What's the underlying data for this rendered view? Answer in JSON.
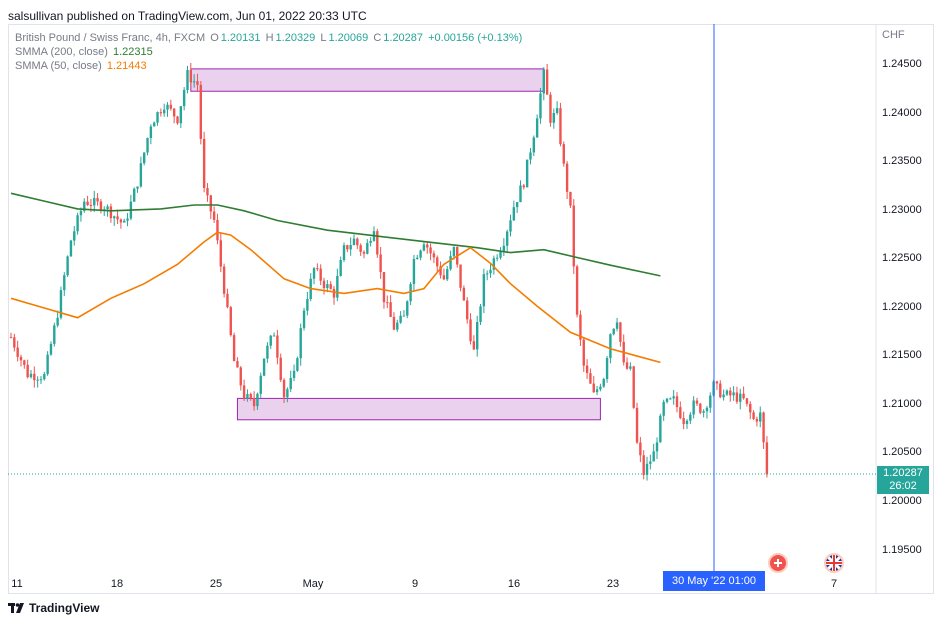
{
  "header": {
    "publisher": "salsullivan published on TradingView.com, Jun 01, 2022 20:33 UTC"
  },
  "legend": {
    "symbol": "British Pound / Swiss Franc, 4h, FXCM",
    "o_label": "O",
    "o_value": "1.20131",
    "h_label": "H",
    "h_value": "1.20329",
    "l_label": "L",
    "l_value": "1.20069",
    "c_label": "C",
    "c_value": "1.20287",
    "change": "+0.00156 (+0.13%)",
    "sma200_label": "SMMA (200, close)",
    "sma200_value": "1.22315",
    "sma50_label": "SMMA (50, close)",
    "sma50_value": "1.21443"
  },
  "price_axis": {
    "currency": "CHF",
    "ticks": [
      "1.24500",
      "1.24000",
      "1.23500",
      "1.23000",
      "1.22500",
      "1.22000",
      "1.21500",
      "1.21000",
      "1.20500",
      "1.20000",
      "1.19500"
    ]
  },
  "time_axis": {
    "ticks": [
      "11",
      "18",
      "25",
      "May",
      "9",
      "16",
      "23",
      "7"
    ]
  },
  "last_price": {
    "value": "1.20287",
    "countdown": "26:02"
  },
  "crosshair": {
    "date_label": "30 May '22   01:00"
  },
  "footer": {
    "brand": "TradingView"
  },
  "colors": {
    "up": "#26a69a",
    "down": "#ef5350",
    "sma200": "#2e7d32",
    "sma50": "#f57c00",
    "zone": "#e1bee7",
    "zone_border": "#9c27b0",
    "crosshair": "#2962ff"
  },
  "icons": {
    "event_1": "economic-event-icon",
    "event_2": "uk-flag-icon"
  },
  "chart_data": {
    "type": "candlestick",
    "symbol": "GBPCHF",
    "timeframe": "4h",
    "ylim": [
      1.191,
      1.248
    ],
    "overlays": [
      {
        "name": "SMMA (200, close)",
        "points": [
          [
            0,
            1.2318
          ],
          [
            10,
            1.231
          ],
          [
            20,
            1.2302
          ],
          [
            30,
            1.23
          ],
          [
            45,
            1.2302
          ],
          [
            55,
            1.2306
          ],
          [
            62,
            1.2306
          ],
          [
            70,
            1.23
          ],
          [
            80,
            1.229
          ],
          [
            95,
            1.228
          ],
          [
            110,
            1.2274
          ],
          [
            125,
            1.2268
          ],
          [
            140,
            1.2262
          ],
          [
            150,
            1.2257
          ],
          [
            160,
            1.226
          ],
          [
            170,
            1.2252
          ],
          [
            180,
            1.2244
          ],
          [
            195,
            1.2233
          ]
        ]
      },
      {
        "name": "SMMA (50, close)",
        "points": [
          [
            0,
            1.221
          ],
          [
            10,
            1.22
          ],
          [
            20,
            1.219
          ],
          [
            30,
            1.221
          ],
          [
            40,
            1.2225
          ],
          [
            50,
            1.2245
          ],
          [
            58,
            1.2268
          ],
          [
            62,
            1.2278
          ],
          [
            66,
            1.2275
          ],
          [
            72,
            1.226
          ],
          [
            82,
            1.223
          ],
          [
            90,
            1.222
          ],
          [
            100,
            1.2215
          ],
          [
            110,
            1.222
          ],
          [
            118,
            1.2215
          ],
          [
            124,
            1.222
          ],
          [
            130,
            1.2245
          ],
          [
            138,
            1.2262
          ],
          [
            144,
            1.2246
          ],
          [
            150,
            1.2225
          ],
          [
            158,
            1.2202
          ],
          [
            168,
            1.2175
          ],
          [
            180,
            1.2158
          ],
          [
            195,
            1.2144
          ]
        ]
      }
    ],
    "zones": [
      {
        "x0": 54,
        "x1": 160,
        "top": 1.2446,
        "bottom": 1.2423
      },
      {
        "x0": 68,
        "x1": 177,
        "top": 1.2107,
        "bottom": 1.2085
      }
    ],
    "close_path": [
      [
        0,
        1.217
      ],
      [
        5,
        1.2132
      ],
      [
        10,
        1.213
      ],
      [
        14,
        1.2195
      ],
      [
        18,
        1.227
      ],
      [
        22,
        1.231
      ],
      [
        28,
        1.2305
      ],
      [
        34,
        1.2285
      ],
      [
        38,
        1.233
      ],
      [
        42,
        1.239
      ],
      [
        46,
        1.241
      ],
      [
        50,
        1.2395
      ],
      [
        53,
        1.244
      ],
      [
        56,
        1.243
      ],
      [
        58,
        1.232
      ],
      [
        61,
        1.229
      ],
      [
        64,
        1.222
      ],
      [
        67,
        1.2145
      ],
      [
        70,
        1.211
      ],
      [
        73,
        1.21
      ],
      [
        76,
        1.215
      ],
      [
        79,
        1.2175
      ],
      [
        82,
        1.211
      ],
      [
        85,
        1.213
      ],
      [
        88,
        1.22
      ],
      [
        91,
        1.224
      ],
      [
        94,
        1.2225
      ],
      [
        97,
        1.2215
      ],
      [
        100,
        1.226
      ],
      [
        103,
        1.227
      ],
      [
        106,
        1.2255
      ],
      [
        109,
        1.2285
      ],
      [
        112,
        1.221
      ],
      [
        115,
        1.218
      ],
      [
        118,
        1.219
      ],
      [
        121,
        1.225
      ],
      [
        124,
        1.227
      ],
      [
        127,
        1.225
      ],
      [
        130,
        1.223
      ],
      [
        133,
        1.226
      ],
      [
        136,
        1.2205
      ],
      [
        139,
        1.2155
      ],
      [
        142,
        1.223
      ],
      [
        145,
        1.225
      ],
      [
        148,
        1.227
      ],
      [
        151,
        1.2305
      ],
      [
        154,
        1.233
      ],
      [
        157,
        1.238
      ],
      [
        160,
        1.244
      ],
      [
        162,
        1.2395
      ],
      [
        164,
        1.24
      ],
      [
        166,
        1.2345
      ],
      [
        168,
        1.23
      ],
      [
        170,
        1.219
      ],
      [
        172,
        1.214
      ],
      [
        175,
        1.211
      ],
      [
        178,
        1.213
      ],
      [
        180,
        1.2175
      ],
      [
        182,
        1.219
      ],
      [
        184,
        1.214
      ],
      [
        186,
        1.2135
      ],
      [
        188,
        1.206
      ],
      [
        190,
        1.203
      ],
      [
        193,
        1.205
      ],
      [
        196,
        1.21
      ],
      [
        199,
        1.2105
      ],
      [
        202,
        1.2085
      ],
      [
        205,
        1.21
      ],
      [
        208,
        1.2095
      ],
      [
        211,
        1.212
      ],
      [
        214,
        1.211
      ],
      [
        217,
        1.211
      ],
      [
        220,
        1.2105
      ],
      [
        223,
        1.2085
      ],
      [
        225,
        1.209
      ],
      [
        227,
        1.2029
      ]
    ],
    "candle_count": 228
  }
}
